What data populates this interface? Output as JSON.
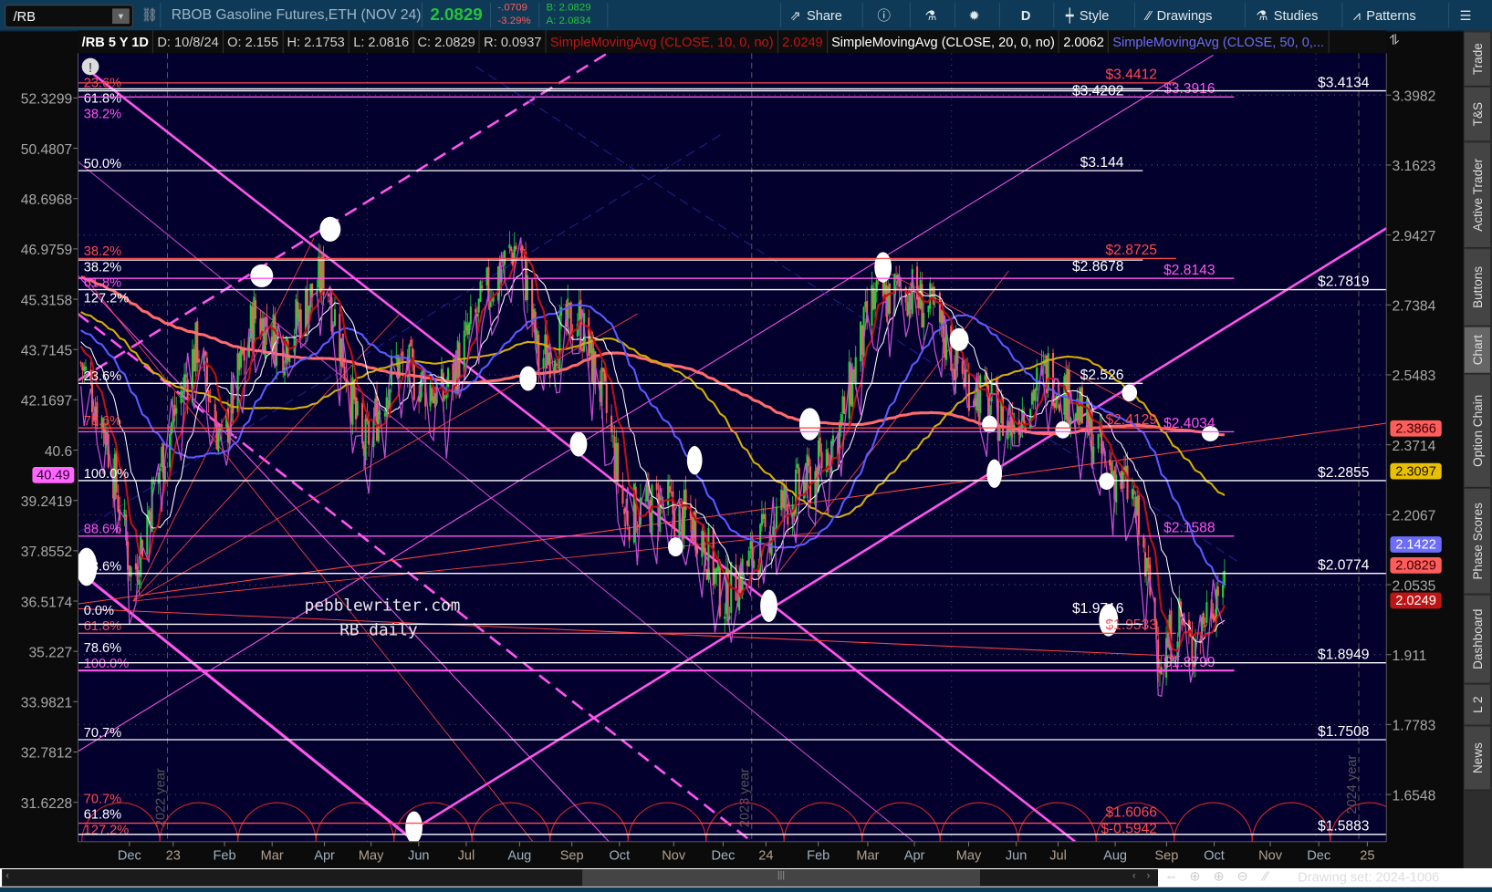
{
  "toolbar": {
    "symbol": "/RB",
    "description": "RBOB Gasoline Futures,ETH (NOV 24)",
    "last": "2.0829",
    "change": "-.0709",
    "change_pct": "-3.29%",
    "bid": "B: 2.0829",
    "ask": "A: 2.0834",
    "buttons": {
      "share": "Share",
      "timeframe": "D",
      "style": "Style",
      "drawings": "Drawings",
      "studies": "Studies",
      "patterns": "Patterns"
    },
    "colors": {
      "up": "#22c43a",
      "down": "#ff5a5a"
    }
  },
  "header": {
    "title": "/RB 5 Y 1D",
    "date": "D: 10/8/24",
    "open": "O: 2.155",
    "high": "H: 2.1753",
    "low": "L: 2.0816",
    "close": "C: 2.0829",
    "range": "R: 0.0937",
    "studies": [
      {
        "label": "SimpleMovingAvg (CLOSE, 10, 0, no)",
        "value": "2.0249",
        "color": "#d01818"
      },
      {
        "label": "SimpleMovingAvg (CLOSE, 20, 0, no)",
        "value": "2.0062",
        "color": "#ffffff"
      },
      {
        "label": "SimpleMovingAvg (CLOSE, 50, 0,...",
        "color": "#6a6aff"
      }
    ]
  },
  "sidebar": {
    "tabs": [
      "Trade",
      "T&S",
      "Active Trader",
      "Buttons",
      "Chart",
      "Option Chain",
      "Phase Scores",
      "Dashboard",
      "L 2",
      "News"
    ],
    "selected": "Chart"
  },
  "chart_data": {
    "type": "candlestick",
    "scale": "log",
    "right_axis_ticks": [
      "3.3982",
      "3.1623",
      "2.9427",
      "2.7384",
      "2.5483",
      "2.3714",
      "2.2067",
      "2.0535",
      "1.911",
      "1.7783",
      "1.6548"
    ],
    "left_axis_ticks": [
      "52.3299",
      "50.4807",
      "48.6968",
      "46.9759",
      "45.3158",
      "43.7145",
      "42.1697",
      "40.6",
      "39.2419",
      "37.8552",
      "36.5174",
      "35.227",
      "33.9821",
      "32.7812",
      "31.6228"
    ],
    "time_ticks": [
      "Dec",
      "23",
      "Feb",
      "Mar",
      "Apr",
      "May",
      "Jun",
      "Jul",
      "Aug",
      "Sep",
      "Oct",
      "Nov",
      "Dec",
      "24",
      "Feb",
      "Mar",
      "Apr",
      "May",
      "Jun",
      "Jul",
      "Aug",
      "Sep",
      "Oct",
      "Nov",
      "Dec",
      "25"
    ],
    "year_labels": [
      "2022 year",
      "2023 year",
      "2024 year"
    ],
    "price_path": [
      {
        "date": "2022-11-01",
        "close": 2.58
      },
      {
        "date": "2022-11-16",
        "close": 2.41
      },
      {
        "date": "2022-12-03",
        "close": 2.06
      },
      {
        "date": "2022-12-15",
        "close": 2.25
      },
      {
        "date": "2022-12-29",
        "close": 2.45
      },
      {
        "date": "2023-01-12",
        "close": 2.63
      },
      {
        "date": "2023-01-27",
        "close": 2.36
      },
      {
        "date": "2023-02-16",
        "close": 2.71
      },
      {
        "date": "2023-03-06",
        "close": 2.63
      },
      {
        "date": "2023-04-01",
        "close": 2.83
      },
      {
        "date": "2023-04-24",
        "close": 2.35
      },
      {
        "date": "2023-05-15",
        "close": 2.58
      },
      {
        "date": "2023-06-13",
        "close": 2.49
      },
      {
        "date": "2023-07-12",
        "close": 2.79
      },
      {
        "date": "2023-07-30",
        "close": 2.93
      },
      {
        "date": "2023-08-11",
        "close": 2.58
      },
      {
        "date": "2023-09-04",
        "close": 2.71
      },
      {
        "date": "2023-09-21",
        "close": 2.47
      },
      {
        "date": "2023-10-03",
        "close": 2.21
      },
      {
        "date": "2023-10-26",
        "close": 2.23
      },
      {
        "date": "2023-11-18",
        "close": 2.18
      },
      {
        "date": "2023-12-03",
        "close": 2.02
      },
      {
        "date": "2023-12-23",
        "close": 2.12
      },
      {
        "date": "2024-01-09",
        "close": 2.23
      },
      {
        "date": "2024-01-27",
        "close": 2.29
      },
      {
        "date": "2024-02-13",
        "close": 2.41
      },
      {
        "date": "2024-03-04",
        "close": 2.74
      },
      {
        "date": "2024-03-25",
        "close": 2.79
      },
      {
        "date": "2024-04-11",
        "close": 2.71
      },
      {
        "date": "2024-04-29",
        "close": 2.55
      },
      {
        "date": "2024-05-16",
        "close": 2.47
      },
      {
        "date": "2024-05-28",
        "close": 2.42
      },
      {
        "date": "2024-06-21",
        "close": 2.56
      },
      {
        "date": "2024-07-08",
        "close": 2.47
      },
      {
        "date": "2024-07-26",
        "close": 2.33
      },
      {
        "date": "2024-08-12",
        "close": 2.25
      },
      {
        "date": "2024-08-21",
        "close": 2.07
      },
      {
        "date": "2024-08-30",
        "close": 1.9
      },
      {
        "date": "2024-09-10",
        "close": 1.99
      },
      {
        "date": "2024-09-17",
        "close": 1.92
      },
      {
        "date": "2024-10-08",
        "close": 2.0829
      }
    ],
    "levels": [
      {
        "price": 3.4412,
        "label": "$3.4412",
        "fib": "23.6%",
        "kind": "red"
      },
      {
        "price": 3.4202,
        "label": "$3.4202",
        "fib": "61.8%",
        "kind": "white-short"
      },
      {
        "price": 3.4134,
        "label": "$3.4134",
        "fib": "",
        "kind": "white-full"
      },
      {
        "price": 3.3916,
        "label": "$3.3916",
        "fib": "38.2%",
        "kind": "magenta"
      },
      {
        "price": 3.144,
        "label": "$3.144",
        "fib": "50.0%",
        "kind": "white-short"
      },
      {
        "price": 2.8725,
        "label": "$2.8725",
        "fib": "38.2%",
        "kind": "red"
      },
      {
        "price": 2.8678,
        "label": "$2.8678",
        "fib": "38.2%",
        "kind": "white-short"
      },
      {
        "price": 2.8143,
        "label": "$2.8143",
        "fib": "61.8%",
        "kind": "magenta"
      },
      {
        "price": 2.7819,
        "label": "$2.7819",
        "fib": "127.2%",
        "kind": "white-full"
      },
      {
        "price": 2.526,
        "label": "$2.526",
        "fib": "23.6%",
        "kind": "white-short"
      },
      {
        "price": 2.4129,
        "label": "$2.4129",
        "fib": "78.6%",
        "kind": "red"
      },
      {
        "price": 2.4034,
        "label": "$2.4034",
        "fib": "",
        "kind": "magenta"
      },
      {
        "price": 2.2855,
        "label": "$2.2855",
        "fib": "100.0%",
        "kind": "white-full"
      },
      {
        "price": 2.1588,
        "label": "$2.1588",
        "fib": "88.6%",
        "kind": "magenta"
      },
      {
        "price": 2.0774,
        "label": "$2.0774",
        "fib": "23.6%",
        "kind": "white-full"
      },
      {
        "price": 1.9716,
        "label": "$1.9716",
        "fib": "0.0%",
        "kind": "white-short"
      },
      {
        "price": 1.9533,
        "label": "$1.9533",
        "fib": "61.8%",
        "kind": "red"
      },
      {
        "price": 1.8949,
        "label": "$1.8949",
        "fib": "78.6%",
        "kind": "white-full"
      },
      {
        "price": 1.8799,
        "label": "$1.8799",
        "fib": "100.0%",
        "kind": "magenta"
      },
      {
        "price": 1.7508,
        "label": "$1.7508",
        "fib": "70.7%",
        "kind": "white-full"
      },
      {
        "price": 1.6066,
        "label": "$1.6066",
        "fib": "70.7%",
        "kind": "red"
      },
      {
        "price": 1.5883,
        "label": "$1.5883",
        "fib": "61.8%",
        "kind": "white-full"
      },
      {
        "price": -0.5942,
        "label": "$-0.5942",
        "fib": "127.2%",
        "kind": "red-offscale"
      }
    ],
    "badges": [
      {
        "value": "2.3866",
        "bg": "#ff5c5c",
        "fg": "#3a0000",
        "price": 2.3866
      },
      {
        "value": "2.3097",
        "bg": "#e8c000",
        "fg": "#1a1400",
        "price": 2.3097
      },
      {
        "value": "2.1422",
        "bg": "#6c6cff",
        "fg": "#ffffff",
        "price": 2.1422
      },
      {
        "value": "2.0829",
        "bg": "#ff5c5c",
        "fg": "#3a0000",
        "price": 2.0829
      },
      {
        "value": "2.0249",
        "bg": "#c01414",
        "fg": "#ffffff",
        "price": 2.0249
      }
    ],
    "left_badge": {
      "value": "40.49",
      "bg": "#ff66ff"
    },
    "watermark": [
      "pebblewriter.com",
      "RB daily"
    ],
    "series_colors": {
      "sma10": "#c01010",
      "sma20": "#ffffff",
      "sma50": "#5a5aff",
      "sma100": "#d4b000",
      "sma200": "#ff6b6b",
      "oscillator": "#c050d0",
      "fib_white": "#ffffff",
      "fib_red": "#ff4a4a",
      "fib_magenta": "#ff55ee"
    }
  },
  "footer": {
    "drawing_set": "Drawing set: 2024-1006"
  }
}
